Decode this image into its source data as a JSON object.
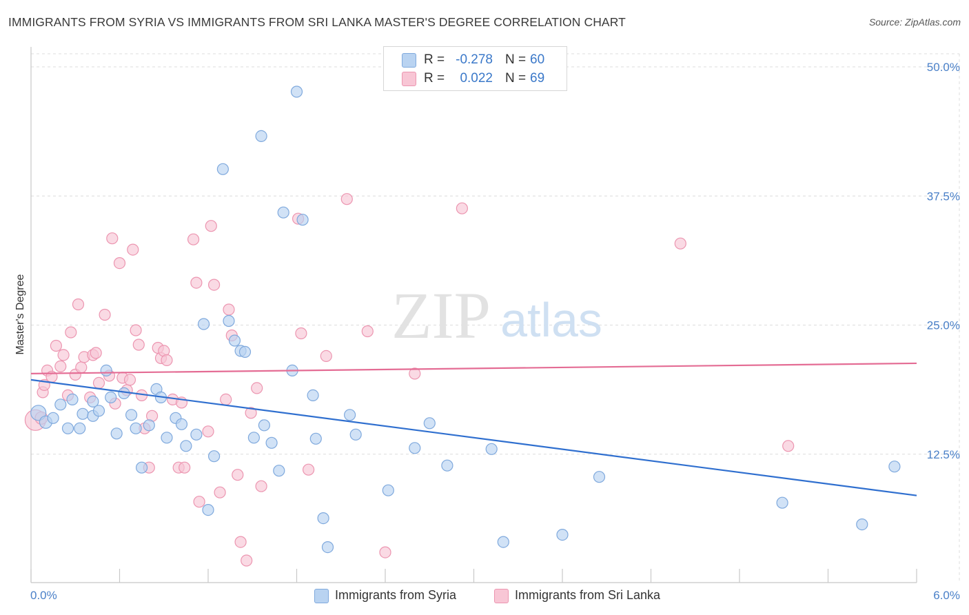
{
  "title": "IMMIGRANTS FROM SYRIA VS IMMIGRANTS FROM SRI LANKA MASTER'S DEGREE CORRELATION CHART",
  "source": "Source: ZipAtlas.com",
  "watermark": {
    "zip": "ZIP",
    "atlas": "atlas"
  },
  "colors": {
    "syria_fill": "#b9d3f1",
    "syria_stroke": "#7fa9dd",
    "syria_line": "#2f6fcf",
    "srilanka_fill": "#f8c6d5",
    "srilanka_stroke": "#ec95b0",
    "srilanka_line": "#e46c94",
    "tick_text": "#4a80c8",
    "grid": "#dcdcdc"
  },
  "legend_top": {
    "rows": [
      {
        "r_label": "R =",
        "r_value": "-0.278",
        "n_label": "N =",
        "n_value": "60"
      },
      {
        "r_label": "R =",
        "r_value": "0.022",
        "n_label": "N =",
        "n_value": "69"
      }
    ]
  },
  "legend_bottom": {
    "syria": "Immigrants from Syria",
    "srilanka": "Immigrants from Sri Lanka"
  },
  "chart_data": {
    "type": "scatter",
    "title": "IMMIGRANTS FROM SYRIA VS IMMIGRANTS FROM SRI LANKA MASTER'S DEGREE CORRELATION CHART",
    "xlabel": "",
    "ylabel": "Master's Degree",
    "xlim": [
      0,
      6
    ],
    "ylim": [
      0,
      50
    ],
    "x_tick_labels": [
      "0.0%",
      "6.0%"
    ],
    "y_ticks": [
      12.5,
      25.0,
      37.5,
      50.0
    ],
    "y_tick_labels": [
      "12.5%",
      "25.0%",
      "37.5%",
      "50.0%"
    ],
    "grid": true,
    "legend": "bottom",
    "series": [
      {
        "name": "Immigrants from Syria",
        "trend": {
          "x": [
            0,
            6
          ],
          "y": [
            19.7,
            8.5
          ]
        },
        "points": [
          [
            0.05,
            16.5,
            11
          ],
          [
            0.1,
            15.6,
            9
          ],
          [
            0.15,
            16.0,
            8
          ],
          [
            0.2,
            17.3,
            8
          ],
          [
            0.25,
            15.0,
            8
          ],
          [
            0.28,
            17.8,
            8
          ],
          [
            0.33,
            15.0,
            8
          ],
          [
            0.35,
            16.4,
            8
          ],
          [
            0.42,
            16.2,
            8
          ],
          [
            0.42,
            17.6,
            8
          ],
          [
            0.46,
            16.7,
            8
          ],
          [
            0.51,
            20.6,
            8
          ],
          [
            0.54,
            18.0,
            8
          ],
          [
            0.58,
            14.5,
            8
          ],
          [
            0.63,
            18.4,
            8
          ],
          [
            0.68,
            16.3,
            8
          ],
          [
            0.71,
            15.0,
            8
          ],
          [
            0.75,
            11.2,
            8
          ],
          [
            0.8,
            15.3,
            8
          ],
          [
            0.85,
            18.8,
            8
          ],
          [
            0.88,
            18.0,
            8
          ],
          [
            0.92,
            14.1,
            8
          ],
          [
            0.98,
            16.0,
            8
          ],
          [
            1.02,
            15.4,
            8
          ],
          [
            1.05,
            13.3,
            8
          ],
          [
            1.12,
            14.4,
            8
          ],
          [
            1.17,
            25.1,
            8
          ],
          [
            1.2,
            7.1,
            8
          ],
          [
            1.24,
            12.3,
            8
          ],
          [
            1.3,
            40.1,
            8
          ],
          [
            1.34,
            25.4,
            8
          ],
          [
            1.38,
            23.5,
            8
          ],
          [
            1.42,
            22.5,
            8
          ],
          [
            1.45,
            22.4,
            8
          ],
          [
            1.51,
            14.1,
            8
          ],
          [
            1.56,
            43.3,
            8
          ],
          [
            1.58,
            15.3,
            8
          ],
          [
            1.63,
            13.6,
            8
          ],
          [
            1.68,
            10.9,
            8
          ],
          [
            1.71,
            35.9,
            8
          ],
          [
            1.77,
            20.6,
            8
          ],
          [
            1.8,
            47.6,
            8
          ],
          [
            1.84,
            35.2,
            8
          ],
          [
            1.91,
            18.2,
            8
          ],
          [
            1.93,
            14.0,
            8
          ],
          [
            1.98,
            6.3,
            8
          ],
          [
            2.01,
            3.5,
            8
          ],
          [
            2.16,
            16.3,
            8
          ],
          [
            2.2,
            14.4,
            8
          ],
          [
            2.42,
            9.0,
            8
          ],
          [
            2.6,
            13.1,
            8
          ],
          [
            2.7,
            15.5,
            8
          ],
          [
            2.82,
            11.4,
            8
          ],
          [
            3.12,
            13.0,
            8
          ],
          [
            3.2,
            4.0,
            8
          ],
          [
            3.6,
            4.7,
            8
          ],
          [
            3.85,
            10.3,
            8
          ],
          [
            5.09,
            7.8,
            8
          ],
          [
            5.63,
            5.7,
            8
          ],
          [
            5.85,
            11.3,
            8
          ]
        ]
      },
      {
        "name": "Immigrants from Sri Lanka",
        "trend": {
          "x": [
            0,
            6
          ],
          "y": [
            20.3,
            21.3
          ]
        },
        "points": [
          [
            0.03,
            15.8,
            15
          ],
          [
            0.07,
            16.0,
            9
          ],
          [
            0.08,
            18.5,
            8
          ],
          [
            0.09,
            19.2,
            8
          ],
          [
            0.11,
            20.6,
            8
          ],
          [
            0.14,
            20.0,
            8
          ],
          [
            0.17,
            23.0,
            8
          ],
          [
            0.2,
            21.0,
            8
          ],
          [
            0.22,
            22.1,
            8
          ],
          [
            0.25,
            18.2,
            8
          ],
          [
            0.27,
            24.3,
            8
          ],
          [
            0.3,
            20.2,
            8
          ],
          [
            0.32,
            27.0,
            8
          ],
          [
            0.34,
            20.9,
            8
          ],
          [
            0.36,
            21.9,
            8
          ],
          [
            0.4,
            18.0,
            8
          ],
          [
            0.42,
            22.1,
            8
          ],
          [
            0.44,
            22.3,
            8
          ],
          [
            0.46,
            19.4,
            8
          ],
          [
            0.5,
            26.0,
            8
          ],
          [
            0.53,
            20.1,
            8
          ],
          [
            0.55,
            33.4,
            8
          ],
          [
            0.57,
            17.4,
            8
          ],
          [
            0.6,
            31.0,
            8
          ],
          [
            0.62,
            19.9,
            8
          ],
          [
            0.65,
            18.7,
            8
          ],
          [
            0.67,
            19.7,
            8
          ],
          [
            0.69,
            32.3,
            8
          ],
          [
            0.71,
            24.5,
            8
          ],
          [
            0.73,
            23.1,
            8
          ],
          [
            0.75,
            18.2,
            8
          ],
          [
            0.77,
            15.0,
            8
          ],
          [
            0.8,
            11.2,
            8
          ],
          [
            0.82,
            16.2,
            8
          ],
          [
            0.86,
            22.8,
            8
          ],
          [
            0.88,
            21.8,
            8
          ],
          [
            0.9,
            22.5,
            8
          ],
          [
            0.92,
            21.6,
            8
          ],
          [
            0.96,
            17.8,
            8
          ],
          [
            1.0,
            11.2,
            8
          ],
          [
            1.02,
            17.5,
            8
          ],
          [
            1.04,
            11.2,
            8
          ],
          [
            1.1,
            33.3,
            8
          ],
          [
            1.12,
            29.1,
            8
          ],
          [
            1.14,
            7.9,
            8
          ],
          [
            1.2,
            14.7,
            8
          ],
          [
            1.22,
            34.6,
            8
          ],
          [
            1.24,
            28.9,
            8
          ],
          [
            1.28,
            8.8,
            8
          ],
          [
            1.32,
            17.8,
            8
          ],
          [
            1.34,
            26.5,
            8
          ],
          [
            1.36,
            24.0,
            8
          ],
          [
            1.4,
            10.5,
            8
          ],
          [
            1.42,
            4.0,
            8
          ],
          [
            1.46,
            2.2,
            8
          ],
          [
            1.49,
            16.5,
            8
          ],
          [
            1.53,
            18.9,
            8
          ],
          [
            1.56,
            9.4,
            8
          ],
          [
            1.81,
            35.3,
            8
          ],
          [
            1.83,
            24.2,
            8
          ],
          [
            1.88,
            11.0,
            8
          ],
          [
            2.0,
            22.0,
            8
          ],
          [
            2.14,
            37.2,
            8
          ],
          [
            2.28,
            24.4,
            8
          ],
          [
            2.4,
            3.0,
            8
          ],
          [
            2.6,
            20.3,
            8
          ],
          [
            2.92,
            36.3,
            8
          ],
          [
            4.4,
            32.9,
            8
          ],
          [
            5.13,
            13.3,
            8
          ]
        ]
      }
    ]
  }
}
